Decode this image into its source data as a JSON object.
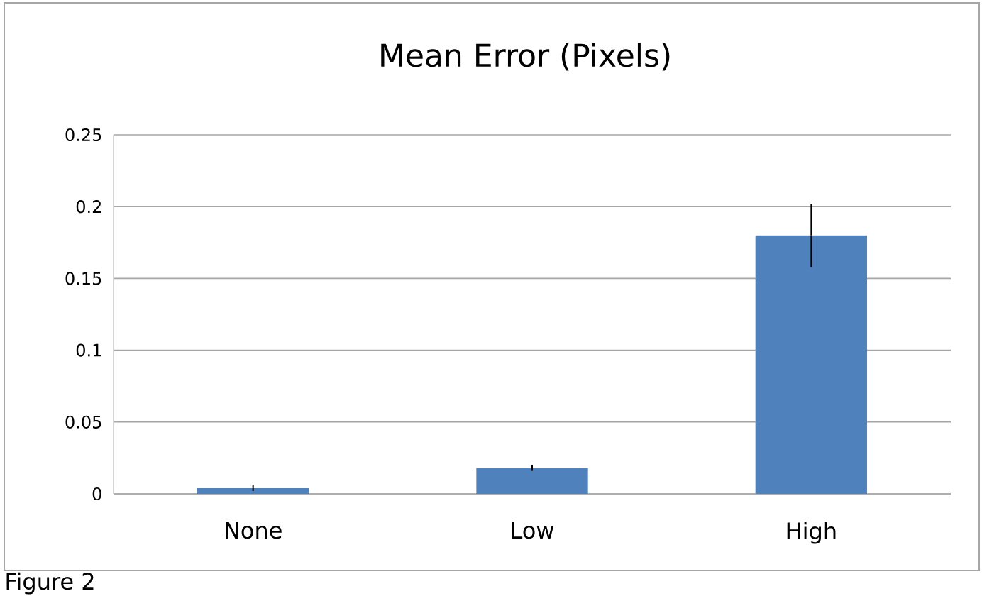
{
  "chart_data": {
    "type": "bar",
    "title": "Mean Error (Pixels)",
    "categories": [
      "None",
      "Low",
      "High"
    ],
    "values": [
      0.004,
      0.018,
      0.18
    ],
    "errors": [
      0.002,
      0.002,
      0.022
    ],
    "color": "#4f81bd",
    "ylim": [
      0,
      0.25
    ],
    "yticks": [
      0,
      0.05,
      0.1,
      0.15,
      0.2,
      0.25
    ],
    "grid": "y",
    "annotations": [
      "Figure 2"
    ]
  }
}
